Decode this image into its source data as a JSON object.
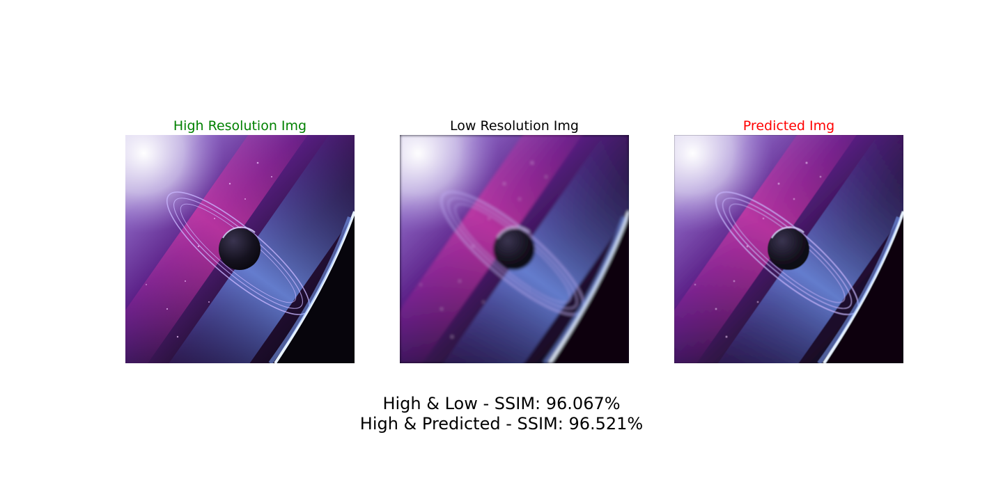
{
  "panels": [
    {
      "title": "High Resolution Img",
      "title_color": "#008000",
      "image": "space-planet-rings"
    },
    {
      "title": "Low Resolution Img",
      "title_color": "#000000",
      "image": "space-planet-rings-blurred"
    },
    {
      "title": "Predicted Img",
      "title_color": "#ff0000",
      "image": "space-planet-rings-sharpened"
    }
  ],
  "caption": {
    "line1": "High & Low - SSIM: 96.067%",
    "line2": "High & Predicted - SSIM: 96.521%"
  }
}
